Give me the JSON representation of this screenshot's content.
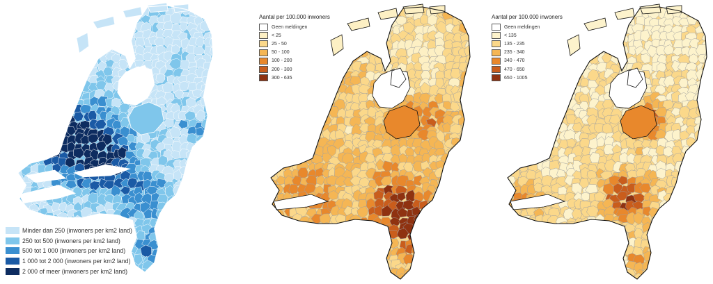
{
  "maps": [
    {
      "name": "population-density",
      "palette": [
        "#c6e4f7",
        "#7fc6eb",
        "#3a8fd0",
        "#1a5aa5",
        "#0d2c60"
      ],
      "legend": {
        "title": "",
        "items": [
          {
            "label": "Minder dan 250 (inwoners per km2 land)",
            "color": "#c6e4f7"
          },
          {
            "label": "250 tot 500 (inwoners per km2 land)",
            "color": "#7fc6eb"
          },
          {
            "label": "500 tot 1 000 (inwoners per km2 land)",
            "color": "#3a8fd0"
          },
          {
            "label": "1 000 tot 2 000 (inwoners per km2 land)",
            "color": "#1a5aa5"
          },
          {
            "label": "2 000 of meer (inwoners per km2 land)",
            "color": "#0d2c60"
          }
        ]
      }
    },
    {
      "name": "reports-map-a",
      "palette": [
        "#ffffff",
        "#fdf0c4",
        "#fbd88a",
        "#f5b654",
        "#e8882c",
        "#c95d1c",
        "#8f3210"
      ],
      "legend": {
        "title": "Aantal per 100.000 inwoners",
        "items": [
          {
            "label": "Geen meldingen",
            "color": "#ffffff"
          },
          {
            "label": "< 25",
            "color": "#fdf0c4"
          },
          {
            "label": "25 - 50",
            "color": "#fbd88a"
          },
          {
            "label": "50 - 100",
            "color": "#f5b654"
          },
          {
            "label": "100 - 200",
            "color": "#e8882c"
          },
          {
            "label": "200 - 300",
            "color": "#c95d1c"
          },
          {
            "label": "300 - 635",
            "color": "#8f3210"
          }
        ]
      }
    },
    {
      "name": "reports-map-b",
      "palette": [
        "#ffffff",
        "#fdf3cc",
        "#fbd88a",
        "#f5b654",
        "#e8882c",
        "#c95d1c",
        "#8f3210"
      ],
      "legend": {
        "title": "Aantal per 100.000 inwoners",
        "items": [
          {
            "label": "Geen meldingen",
            "color": "#ffffff"
          },
          {
            "label": "< 135",
            "color": "#fdf3cc"
          },
          {
            "label": "135 - 235",
            "color": "#fbd88a"
          },
          {
            "label": "235 - 340",
            "color": "#f5b654"
          },
          {
            "label": "340 - 470",
            "color": "#e8882c"
          },
          {
            "label": "470 - 650",
            "color": "#c95d1c"
          },
          {
            "label": "650 - 1005",
            "color": "#8f3210"
          }
        ]
      }
    }
  ]
}
